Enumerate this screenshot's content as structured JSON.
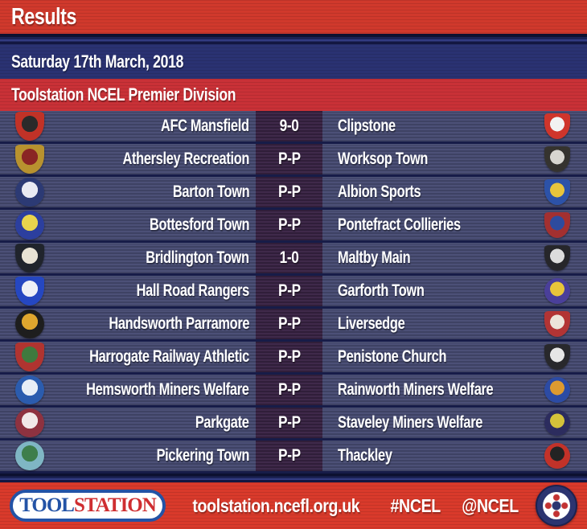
{
  "header": {
    "title": "Results"
  },
  "date_bar": {
    "label": "Saturday 17th March, 2018"
  },
  "division_bar": {
    "label": "Toolstation NCEL Premier Division"
  },
  "matches": [
    {
      "home": "AFC Mansfield",
      "score": "9-0",
      "away": "Clipstone",
      "home_badge": {
        "shape": "shield",
        "primary": "#c13227",
        "secondary": "#2a2a2a"
      },
      "away_badge": {
        "shape": "shield",
        "primary": "#cf352b",
        "secondary": "#f2f2f2"
      }
    },
    {
      "home": "Athersley Recreation",
      "score": "P-P",
      "away": "Worksop Town",
      "home_badge": {
        "shape": "shield",
        "primary": "#b8922f",
        "secondary": "#8a2424"
      },
      "away_badge": {
        "shape": "shield",
        "primary": "#35332f",
        "secondary": "#d8d6d0"
      }
    },
    {
      "home": "Barton Town",
      "score": "P-P",
      "away": "Albion Sports",
      "home_badge": {
        "shape": "circle",
        "primary": "#2c3a74",
        "secondary": "#e9eaf2"
      },
      "away_badge": {
        "shape": "shield",
        "primary": "#2c52a8",
        "secondary": "#e7c43c"
      }
    },
    {
      "home": "Bottesford Town",
      "score": "P-P",
      "away": "Pontefract Collieries",
      "home_badge": {
        "shape": "circle",
        "primary": "#2c3f9e",
        "secondary": "#e8d44c"
      },
      "away_badge": {
        "shape": "shield",
        "primary": "#a33030",
        "secondary": "#2e4b9e"
      }
    },
    {
      "home": "Bridlington Town",
      "score": "1-0",
      "away": "Maltby Main",
      "home_badge": {
        "shape": "shield",
        "primary": "#20242c",
        "secondary": "#e8e2d4"
      },
      "away_badge": {
        "shape": "shield",
        "primary": "#26262a",
        "secondary": "#dcdcdc"
      }
    },
    {
      "home": "Hall Road Rangers",
      "score": "P-P",
      "away": "Garforth Town",
      "home_badge": {
        "shape": "shield",
        "primary": "#2547c1",
        "secondary": "#eef0f6"
      },
      "away_badge": {
        "shape": "circle",
        "primary": "#4a3f9a",
        "secondary": "#e8c53a"
      }
    },
    {
      "home": "Handsworth Parramore",
      "score": "P-P",
      "away": "Liversedge",
      "home_badge": {
        "shape": "circle",
        "primary": "#1e1e1e",
        "secondary": "#dfa62e"
      },
      "away_badge": {
        "shape": "shield",
        "primary": "#b23434",
        "secondary": "#ece4da"
      }
    },
    {
      "home": "Harrogate Railway Athletic",
      "score": "P-P",
      "away": "Penistone Church",
      "home_badge": {
        "shape": "shield",
        "primary": "#b03430",
        "secondary": "#3f7a3e"
      },
      "away_badge": {
        "shape": "shield",
        "primary": "#28282c",
        "secondary": "#e6e6e6"
      }
    },
    {
      "home": "Hemsworth Miners Welfare",
      "score": "P-P",
      "away": "Rainworth Miners Welfare",
      "home_badge": {
        "shape": "circle",
        "primary": "#2b5cae",
        "secondary": "#e8eef6"
      },
      "away_badge": {
        "shape": "circle",
        "primary": "#2c4ba4",
        "secondary": "#dd9a30"
      }
    },
    {
      "home": "Parkgate",
      "score": "P-P",
      "away": "Staveley Miners Welfare",
      "home_badge": {
        "shape": "circle",
        "primary": "#8e3240",
        "secondary": "#f1e9e9"
      },
      "away_badge": {
        "shape": "circle",
        "primary": "#2c2c5e",
        "secondary": "#d4c23a"
      }
    },
    {
      "home": "Pickering Town",
      "score": "P-P",
      "away": "Thackley",
      "home_badge": {
        "shape": "circle",
        "primary": "#7fb6c4",
        "secondary": "#3e7e4c"
      },
      "away_badge": {
        "shape": "circle",
        "primary": "#c23229",
        "secondary": "#232323"
      }
    }
  ],
  "footer": {
    "sponsor_tool": "TOOL",
    "sponsor_station": "STATION",
    "website": "toolstation.ncefl.org.uk",
    "hashtag": "#NCEL",
    "handle": "@NCEL"
  },
  "colors": {
    "header_red": "#d0392c",
    "date_navy": "#2a3272",
    "division_red": "#c93137",
    "row_bg": "#484d74",
    "score_bg": "#3b2546",
    "separator": "#171c48",
    "footer_red": "#d93a2b",
    "text_white": "#ffffff",
    "ts_blue": "#2353a6",
    "ts_red": "#cf2e31",
    "ncel_navy": "#2c3470"
  }
}
